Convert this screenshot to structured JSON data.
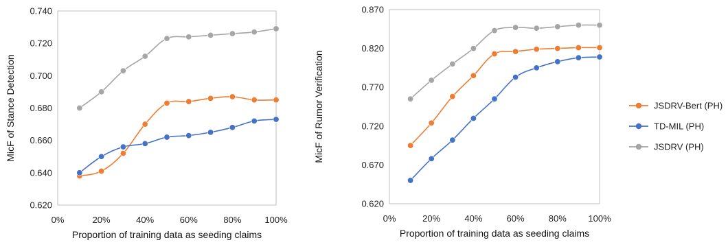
{
  "chart_data": [
    {
      "type": "line",
      "xlabel": "Proportion of training data as seeding claims",
      "ylabel": "MicF of Stance Detection",
      "xlim": [
        0,
        100
      ],
      "ylim": [
        0.62,
        0.74
      ],
      "x_ticks": [
        "0%",
        "20%",
        "40%",
        "60%",
        "80%",
        "100%"
      ],
      "y_ticks": [
        "0.620",
        "0.640",
        "0.660",
        "0.680",
        "0.700",
        "0.720",
        "0.740"
      ],
      "x": [
        10,
        20,
        30,
        40,
        50,
        60,
        70,
        80,
        90,
        100
      ],
      "series": [
        {
          "name": "JSDRV-Bert (PH)",
          "color": "#ed7d31",
          "values": [
            0.638,
            0.641,
            0.652,
            0.67,
            0.683,
            0.684,
            0.686,
            0.687,
            0.685,
            0.685
          ]
        },
        {
          "name": "TD-MIL (PH)",
          "color": "#4472c4",
          "values": [
            0.64,
            0.65,
            0.656,
            0.658,
            0.662,
            0.663,
            0.665,
            0.668,
            0.672,
            0.673
          ]
        },
        {
          "name": "JSDRV (PH)",
          "color": "#a5a5a5",
          "values": [
            0.68,
            0.69,
            0.703,
            0.712,
            0.723,
            0.724,
            0.725,
            0.726,
            0.727,
            0.729
          ]
        }
      ],
      "grid": false
    },
    {
      "type": "line",
      "xlabel": "Proportion of training data as seeding claims",
      "ylabel": "MicF of Rumor Verification",
      "xlim": [
        0,
        100
      ],
      "ylim": [
        0.62,
        0.87
      ],
      "x_ticks": [
        "0%",
        "20%",
        "40%",
        "60%",
        "80%",
        "100%"
      ],
      "y_ticks": [
        "0.620",
        "0.670",
        "0.720",
        "0.770",
        "0.820",
        "0.870"
      ],
      "x": [
        10,
        20,
        30,
        40,
        50,
        60,
        70,
        80,
        90,
        100
      ],
      "series": [
        {
          "name": "JSDRV-Bert (PH)",
          "color": "#ed7d31",
          "values": [
            0.695,
            0.724,
            0.758,
            0.785,
            0.813,
            0.816,
            0.819,
            0.82,
            0.821,
            0.821
          ]
        },
        {
          "name": "TD-MIL (PH)",
          "color": "#4472c4",
          "values": [
            0.65,
            0.678,
            0.702,
            0.73,
            0.755,
            0.783,
            0.795,
            0.803,
            0.808,
            0.809
          ]
        },
        {
          "name": "JSDRV (PH)",
          "color": "#a5a5a5",
          "values": [
            0.755,
            0.779,
            0.8,
            0.82,
            0.843,
            0.847,
            0.846,
            0.848,
            0.85,
            0.85
          ]
        }
      ],
      "grid": false
    }
  ],
  "legend": {
    "placement": "right",
    "entries": [
      {
        "name": "JSDRV-Bert (PH)",
        "color": "#ed7d31"
      },
      {
        "name": "TD-MIL (PH)",
        "color": "#4472c4"
      },
      {
        "name": "JSDRV (PH)",
        "color": "#a5a5a5"
      }
    ]
  }
}
